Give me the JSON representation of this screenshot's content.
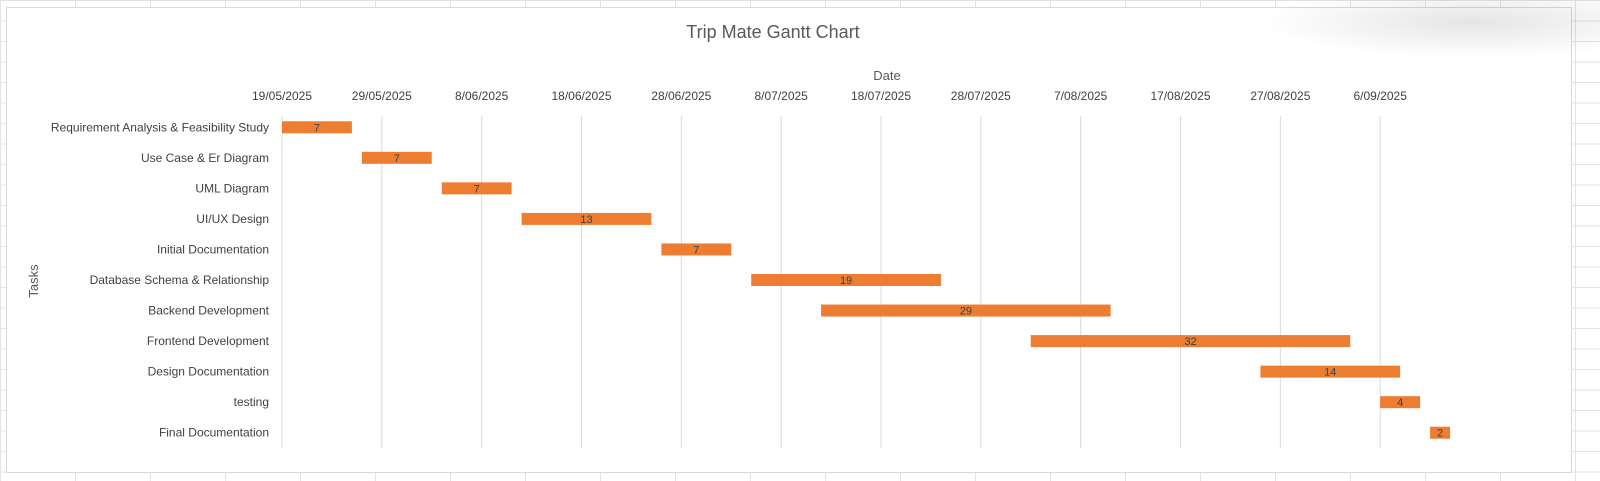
{
  "chart_data": {
    "type": "bar",
    "title": "Trip Mate Gantt Chart",
    "xlabel": "Date",
    "ylabel": "Tasks",
    "x_ticks": [
      "19/05/2025",
      "29/05/2025",
      "8/06/2025",
      "18/06/2025",
      "28/06/2025",
      "8/07/2025",
      "18/07/2025",
      "28/07/2025",
      "7/08/2025",
      "17/08/2025",
      "27/08/2025",
      "6/09/2025"
    ],
    "tasks": [
      {
        "name": "Requirement Analysis & Feasibility Study",
        "start": "2025-05-19",
        "duration": 7
      },
      {
        "name": "Use Case & Er Diagram",
        "start": "2025-05-27",
        "duration": 7
      },
      {
        "name": "UML Diagram ",
        "start": "2025-06-04",
        "duration": 7
      },
      {
        "name": "UI/UX Design",
        "start": "2025-06-12",
        "duration": 13
      },
      {
        "name": "Initial Documentation",
        "start": "2025-06-26",
        "duration": 7
      },
      {
        "name": "Database Schema & Relationship",
        "start": "2025-07-05",
        "duration": 19
      },
      {
        "name": "Backend Development",
        "start": "2025-07-12",
        "duration": 29
      },
      {
        "name": "Frontend Development",
        "start": "2025-08-02",
        "duration": 32
      },
      {
        "name": "Design Documentation",
        "start": "2025-08-25",
        "duration": 14
      },
      {
        "name": "testing",
        "start": "2025-09-06",
        "duration": 4
      },
      {
        "name": "Final Documentation",
        "start": "2025-09-11",
        "duration": 2
      }
    ],
    "xlim": [
      "2025-05-19",
      "2025-09-17"
    ],
    "bar_color": "#ED7D31",
    "grid": true,
    "x_axis_position": "top"
  }
}
